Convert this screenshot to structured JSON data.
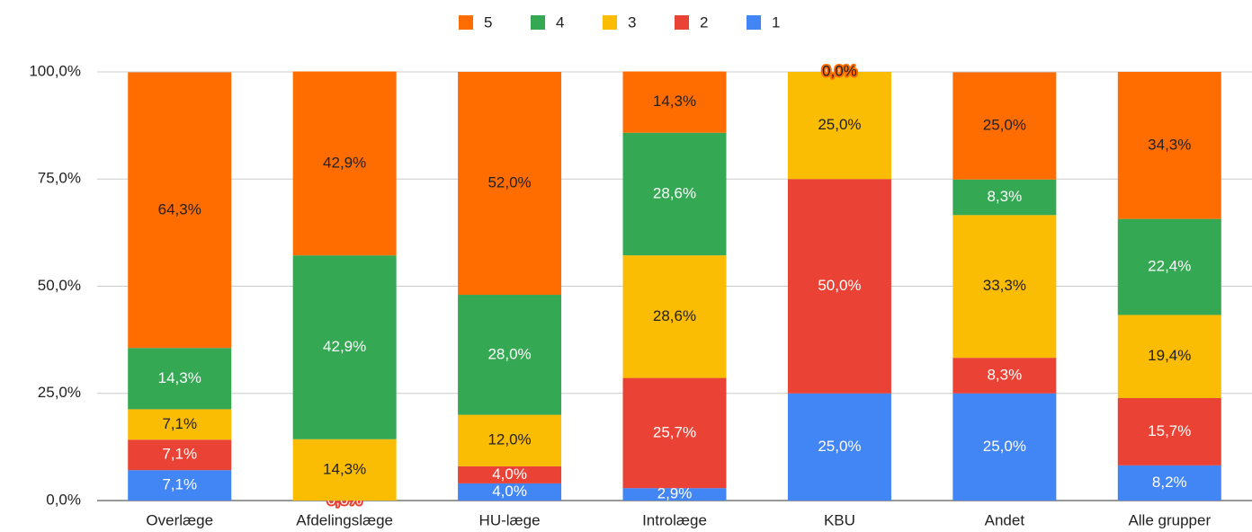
{
  "chart_data": {
    "type": "stacked_bar",
    "categories": [
      "Overlæge",
      "Afdelingslæge",
      "HU-læge",
      "Introlæge",
      "KBU",
      "Andet",
      "Alle grupper"
    ],
    "series": [
      {
        "name": "5",
        "color": "#ff6d01",
        "values": [
          64.3,
          42.9,
          52.0,
          14.3,
          0.0,
          25.0,
          34.3
        ],
        "value_labels": [
          "64,3%",
          "42,9%",
          "52,0%",
          "14,3%",
          "0,0%",
          "25,0%",
          "34,3%"
        ]
      },
      {
        "name": "4",
        "color": "#34a853",
        "values": [
          14.3,
          42.9,
          28.0,
          28.6,
          null,
          8.3,
          22.4
        ],
        "value_labels": [
          "14,3%",
          "42,9%",
          "28,0%",
          "28,6%",
          null,
          "8,3%",
          "22,4%"
        ]
      },
      {
        "name": "3",
        "color": "#fbbc04",
        "values": [
          7.1,
          14.3,
          12.0,
          28.6,
          25.0,
          33.3,
          19.4
        ],
        "value_labels": [
          "7,1%",
          "14,3%",
          "12,0%",
          "28,6%",
          "25,0%",
          "33,3%",
          "19,4%"
        ]
      },
      {
        "name": "2",
        "color": "#ea4335",
        "values": [
          7.1,
          0.0,
          4.0,
          25.7,
          50.0,
          8.3,
          15.7
        ],
        "value_labels": [
          "7,1%",
          "0,0%",
          "4,0%",
          "25,7%",
          "50,0%",
          "8,3%",
          "15,7%"
        ]
      },
      {
        "name": "1",
        "color": "#4285f4",
        "values": [
          7.1,
          null,
          4.0,
          2.9,
          25.0,
          25.0,
          8.2
        ],
        "value_labels": [
          "7,1%",
          null,
          "4,0%",
          "2,9%",
          "25,0%",
          "25,0%",
          "8,2%"
        ]
      }
    ],
    "ylim": [
      0,
      100
    ],
    "yticks": [
      {
        "value": 0,
        "label": "0,0%"
      },
      {
        "value": 25,
        "label": "25,0%"
      },
      {
        "value": 50,
        "label": "50,0%"
      },
      {
        "value": 75,
        "label": "75,0%"
      },
      {
        "value": 100,
        "label": "100,0%"
      }
    ],
    "grid": true,
    "legend": "top"
  }
}
